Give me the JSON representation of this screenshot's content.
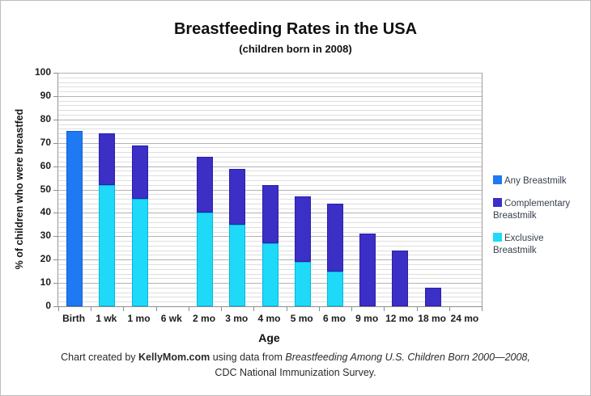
{
  "title": "Breastfeeding Rates in the USA",
  "subtitle": "(children born in 2008)",
  "y_axis_title": "% of children who were breastfed",
  "x_axis_title": "Age",
  "caption": {
    "prefix": "Chart created by ",
    "brand": "KellyMom.com",
    "middle": " using data from ",
    "source_italic": "Breastfeeding Among U.S. Children Born 2000—2008,",
    "line2": "CDC National Immunization Survey."
  },
  "chart_data": {
    "type": "bar",
    "stacked": true,
    "title": "Breastfeeding Rates in the USA",
    "subtitle": "(children born in 2008)",
    "xlabel": "Age",
    "ylabel": "% of children who were breastfed",
    "ylim": [
      0,
      100
    ],
    "y_major_unit": 10,
    "y_minor_unit": 2,
    "y_ticks": [
      0,
      10,
      20,
      30,
      40,
      50,
      60,
      70,
      80,
      90,
      100
    ],
    "grid": true,
    "legend_position": "right",
    "categories": [
      "Birth",
      "1 wk",
      "1 mo",
      "6 wk",
      "2 mo",
      "3 mo",
      "4 mo",
      "5 mo",
      "6 mo",
      "9 mo",
      "12 mo",
      "18 mo",
      "24 mo"
    ],
    "series": [
      {
        "name": "Any Breastmilk",
        "color": "#1E79F2",
        "border": "#1361D6",
        "values": [
          75,
          0,
          0,
          0,
          0,
          0,
          0,
          0,
          0,
          0,
          0,
          0,
          0
        ]
      },
      {
        "name": "Exclusive Breastmilk",
        "color": "#1FD9F8",
        "border": "#00B9DE",
        "values": [
          0,
          52,
          46,
          0,
          40,
          35,
          27,
          19,
          15,
          0,
          0,
          0,
          0
        ]
      },
      {
        "name": "Complementary Breastmilk",
        "color": "#3B2FC6",
        "border": "#2A21A6",
        "values": [
          0,
          22,
          23,
          0,
          24,
          24,
          25,
          28,
          29,
          31,
          24,
          8,
          0
        ]
      }
    ],
    "any_breastmilk_totals": [
      75,
      74,
      69,
      null,
      64,
      59,
      52,
      47,
      44,
      31,
      24,
      8,
      null
    ],
    "legend": {
      "items": [
        {
          "label": "Any Breastmilk",
          "color": "#1E79F2"
        },
        {
          "label": "Complementary Breastmilk",
          "color": "#3B2FC6"
        },
        {
          "label": "Exclusive Breastmilk",
          "color": "#1FD9F8"
        }
      ]
    }
  }
}
